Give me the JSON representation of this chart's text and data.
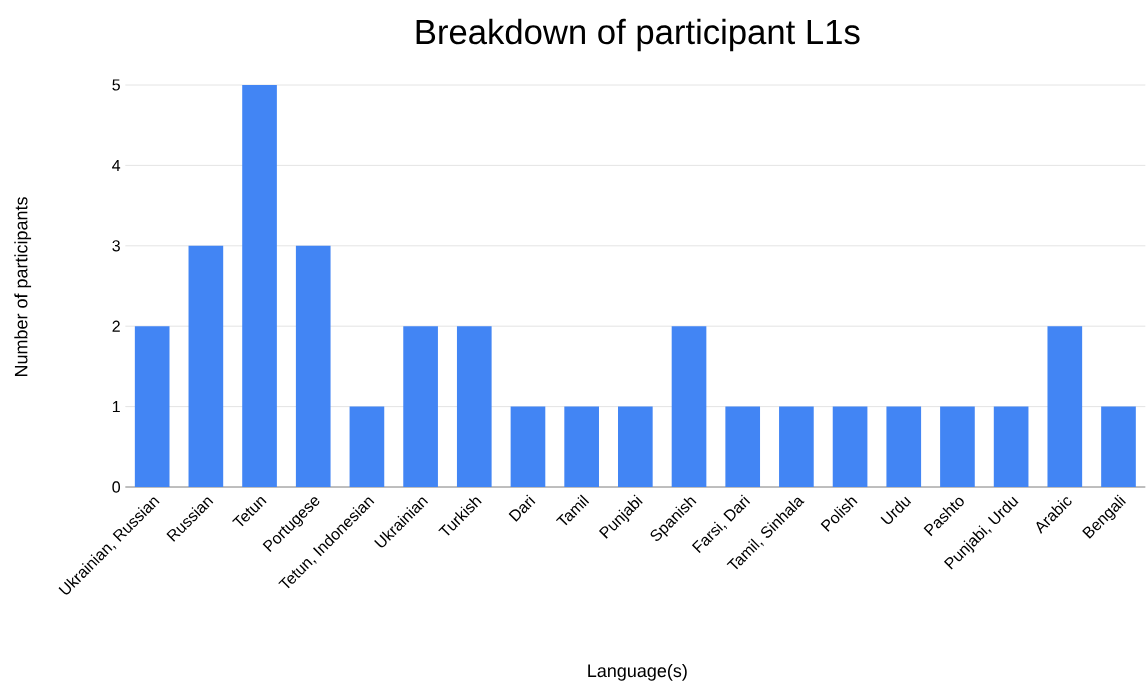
{
  "chart_data": {
    "type": "bar",
    "title": "Breakdown of participant L1s",
    "xlabel": "Language(s)",
    "ylabel": "Number of participants",
    "categories": [
      "Ukrainian, Russian",
      "Russian",
      "Tetun",
      "Portugese",
      "Tetun, Indonesian",
      "Ukrainian",
      "Turkish",
      "Dari",
      "Tamil",
      "Punjabi",
      "Spanish",
      "Farsi, Dari",
      "Tamil, Sinhala",
      "Polish",
      "Urdu",
      "Pashto",
      "Punjabi, Urdu",
      "Arabic",
      "Bengali"
    ],
    "values": [
      2,
      3,
      5,
      3,
      1,
      2,
      2,
      1,
      1,
      1,
      2,
      1,
      1,
      1,
      1,
      1,
      1,
      2,
      1
    ],
    "color": "#4285f4",
    "ylim": [
      0,
      5
    ],
    "yticks": [
      0,
      1,
      2,
      3,
      4,
      5
    ],
    "grid": "y"
  }
}
